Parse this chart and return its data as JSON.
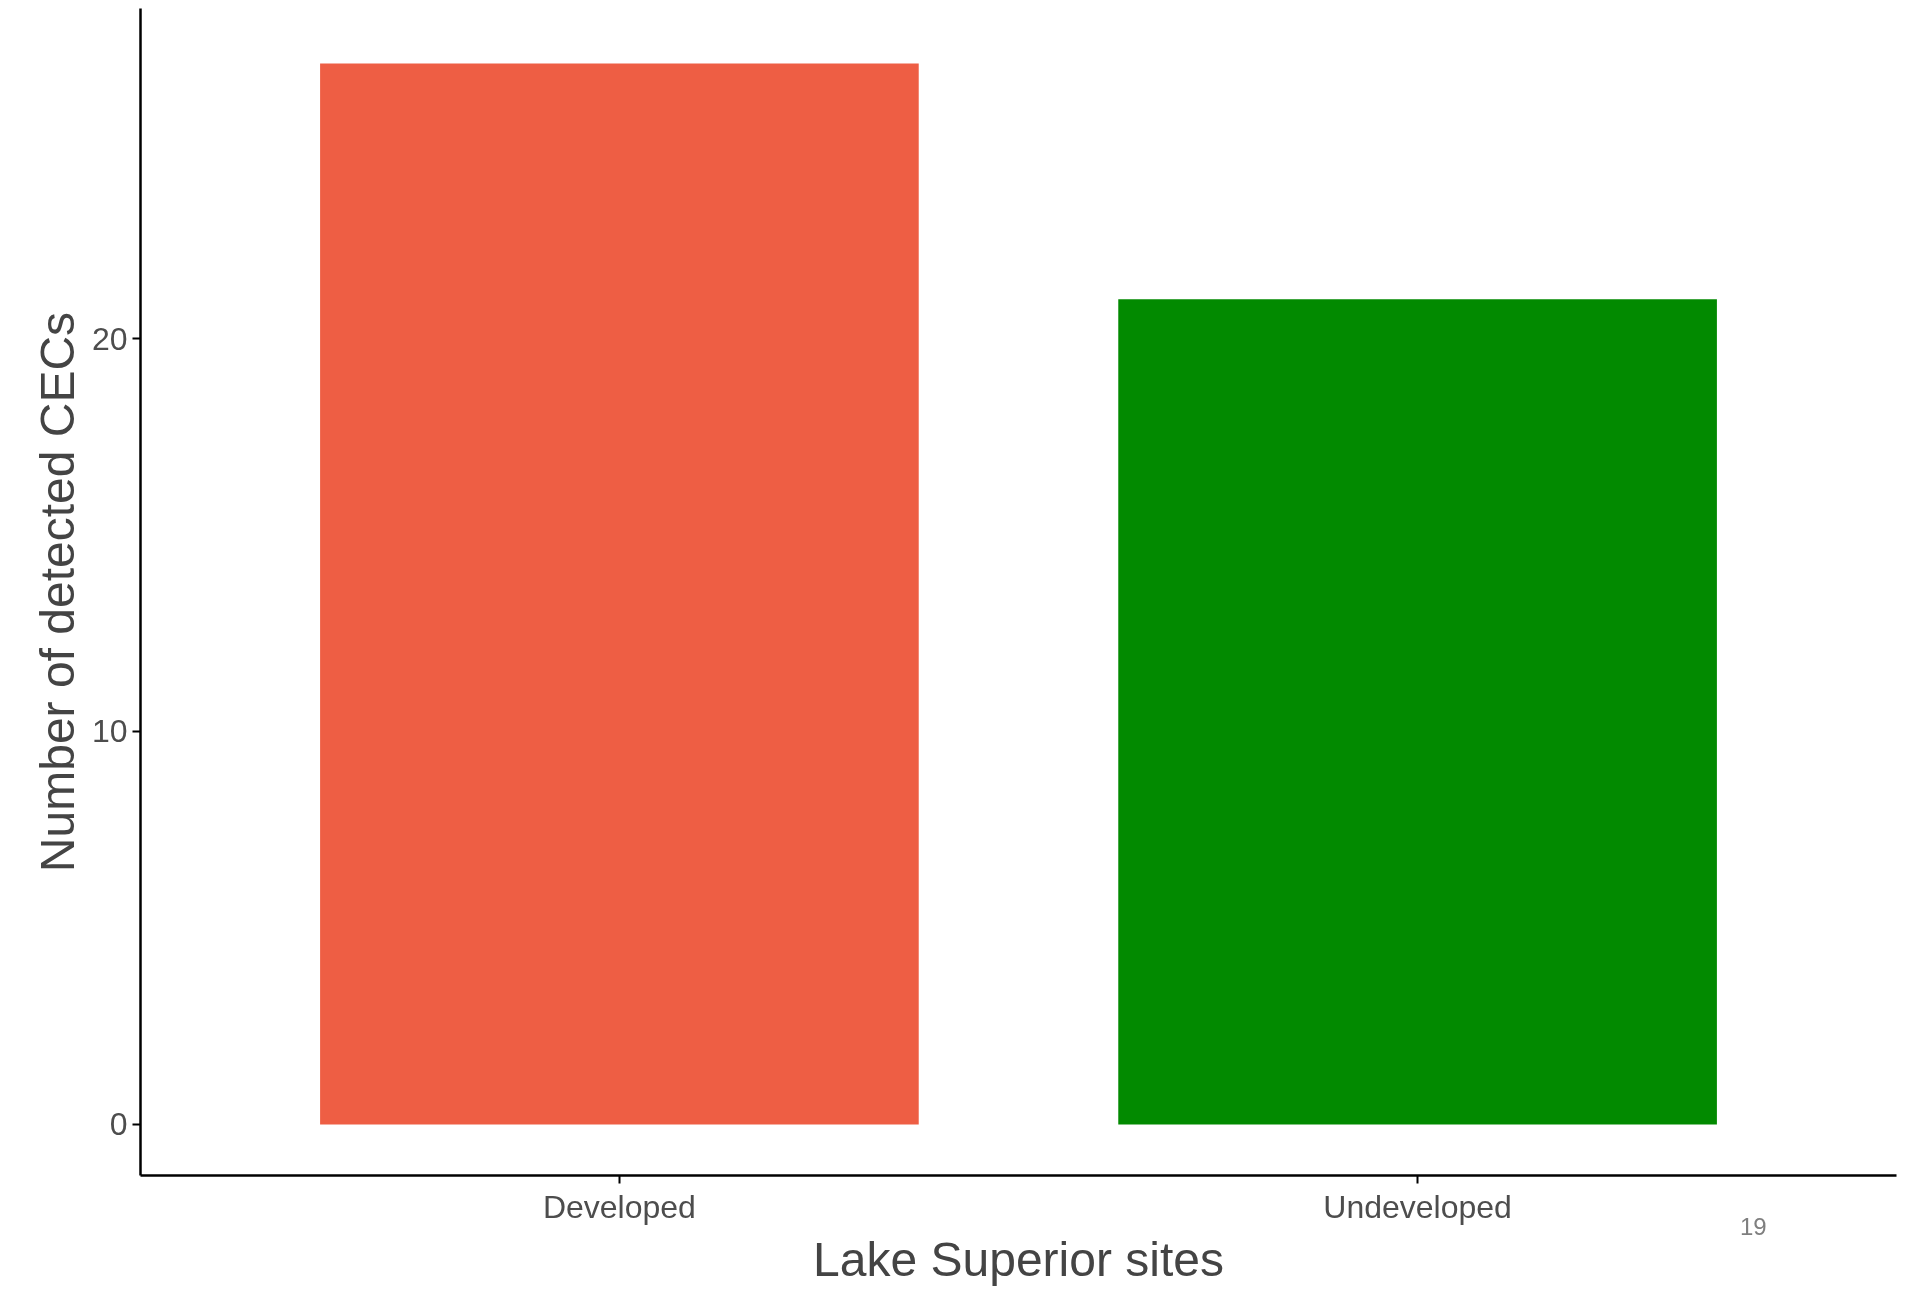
{
  "chart_data": {
    "type": "bar",
    "xlabel": "Lake Superior sites",
    "ylabel": "Number of detected CECs",
    "categories": [
      "Developed",
      "Undeveloped"
    ],
    "values": [
      27,
      21
    ],
    "colors": [
      "#ee5e44",
      "#028a00"
    ],
    "ylim": [
      -1.3,
      28.4
    ],
    "yticks": [
      0,
      10,
      20
    ],
    "grid": false,
    "annotations": [
      "19"
    ]
  }
}
